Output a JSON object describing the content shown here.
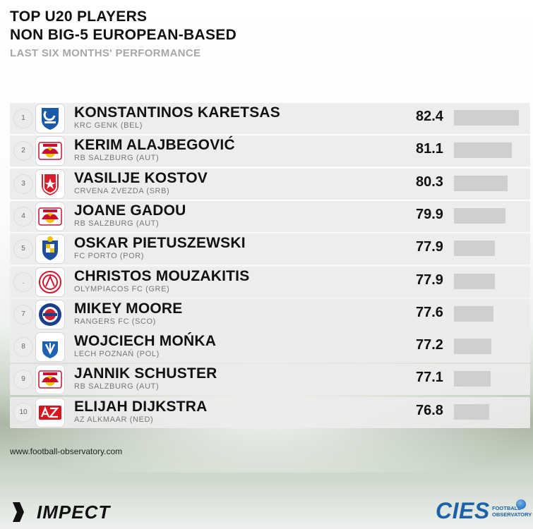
{
  "header": {
    "title_line1": "TOP U20 PLAYERS",
    "title_line2": "NON BIG-5 EUROPEAN-BASED",
    "subtitle": "LAST SIX MONTHS' PERFORMANCE"
  },
  "chart_data": {
    "type": "bar",
    "title": "TOP U20 PLAYERS NON BIG-5 EUROPEAN-BASED",
    "subtitle": "LAST SIX MONTHS' PERFORMANCE",
    "categories": [
      "KONSTANTINOS KARETSAS",
      "KERIM ALAJBEGOVIĆ",
      "VASILIJE KOSTOV",
      "JOANE GADOU",
      "OSKAR PIETUSZEWSKI",
      "CHRISTOS MOUZAKITIS",
      "MIKEY MOORE",
      "WOJCIECH MOŃKA",
      "JANNIK SCHUSTER",
      "ELIJAH DIJKSTRA"
    ],
    "values": [
      82.4,
      81.1,
      80.3,
      79.9,
      77.9,
      77.9,
      77.6,
      77.2,
      77.1,
      76.8
    ],
    "ranks": [
      "1",
      "2",
      "3",
      "4",
      "5",
      ".",
      "7",
      "8",
      "9",
      "10"
    ],
    "clubs": [
      "KRC GENK (BEL)",
      "RB SALZBURG (AUT)",
      "CRVENA ZVEZDA (SRB)",
      "RB SALZBURG (AUT)",
      "FC PORTO (POR)",
      "OLYMPIACOS FC (GRE)",
      "RANGERS FC (SCO)",
      "LECH POZNAŃ (POL)",
      "RB SALZBURG (AUT)",
      "AZ ALKMAAR (NED)"
    ],
    "logos": [
      "genk-logo",
      "salzburg-logo",
      "zvezda-logo",
      "salzburg-logo",
      "porto-logo",
      "olympiacos-logo",
      "rangers-logo",
      "lech-logo",
      "salzburg-logo",
      "az-logo"
    ],
    "xlim": [
      70,
      83
    ],
    "bar_color": "#cfcfcf",
    "orientation": "horizontal"
  },
  "footer": {
    "source": "www.football-observatory.com",
    "brand_left": "IMPECT",
    "brand_right": "CIES",
    "brand_right_sub1": "FOOTBALL",
    "brand_right_sub2": "OBSERVATORY"
  },
  "colors": {
    "cies_blue": "#1c62a8",
    "row_background": "#ececec"
  }
}
